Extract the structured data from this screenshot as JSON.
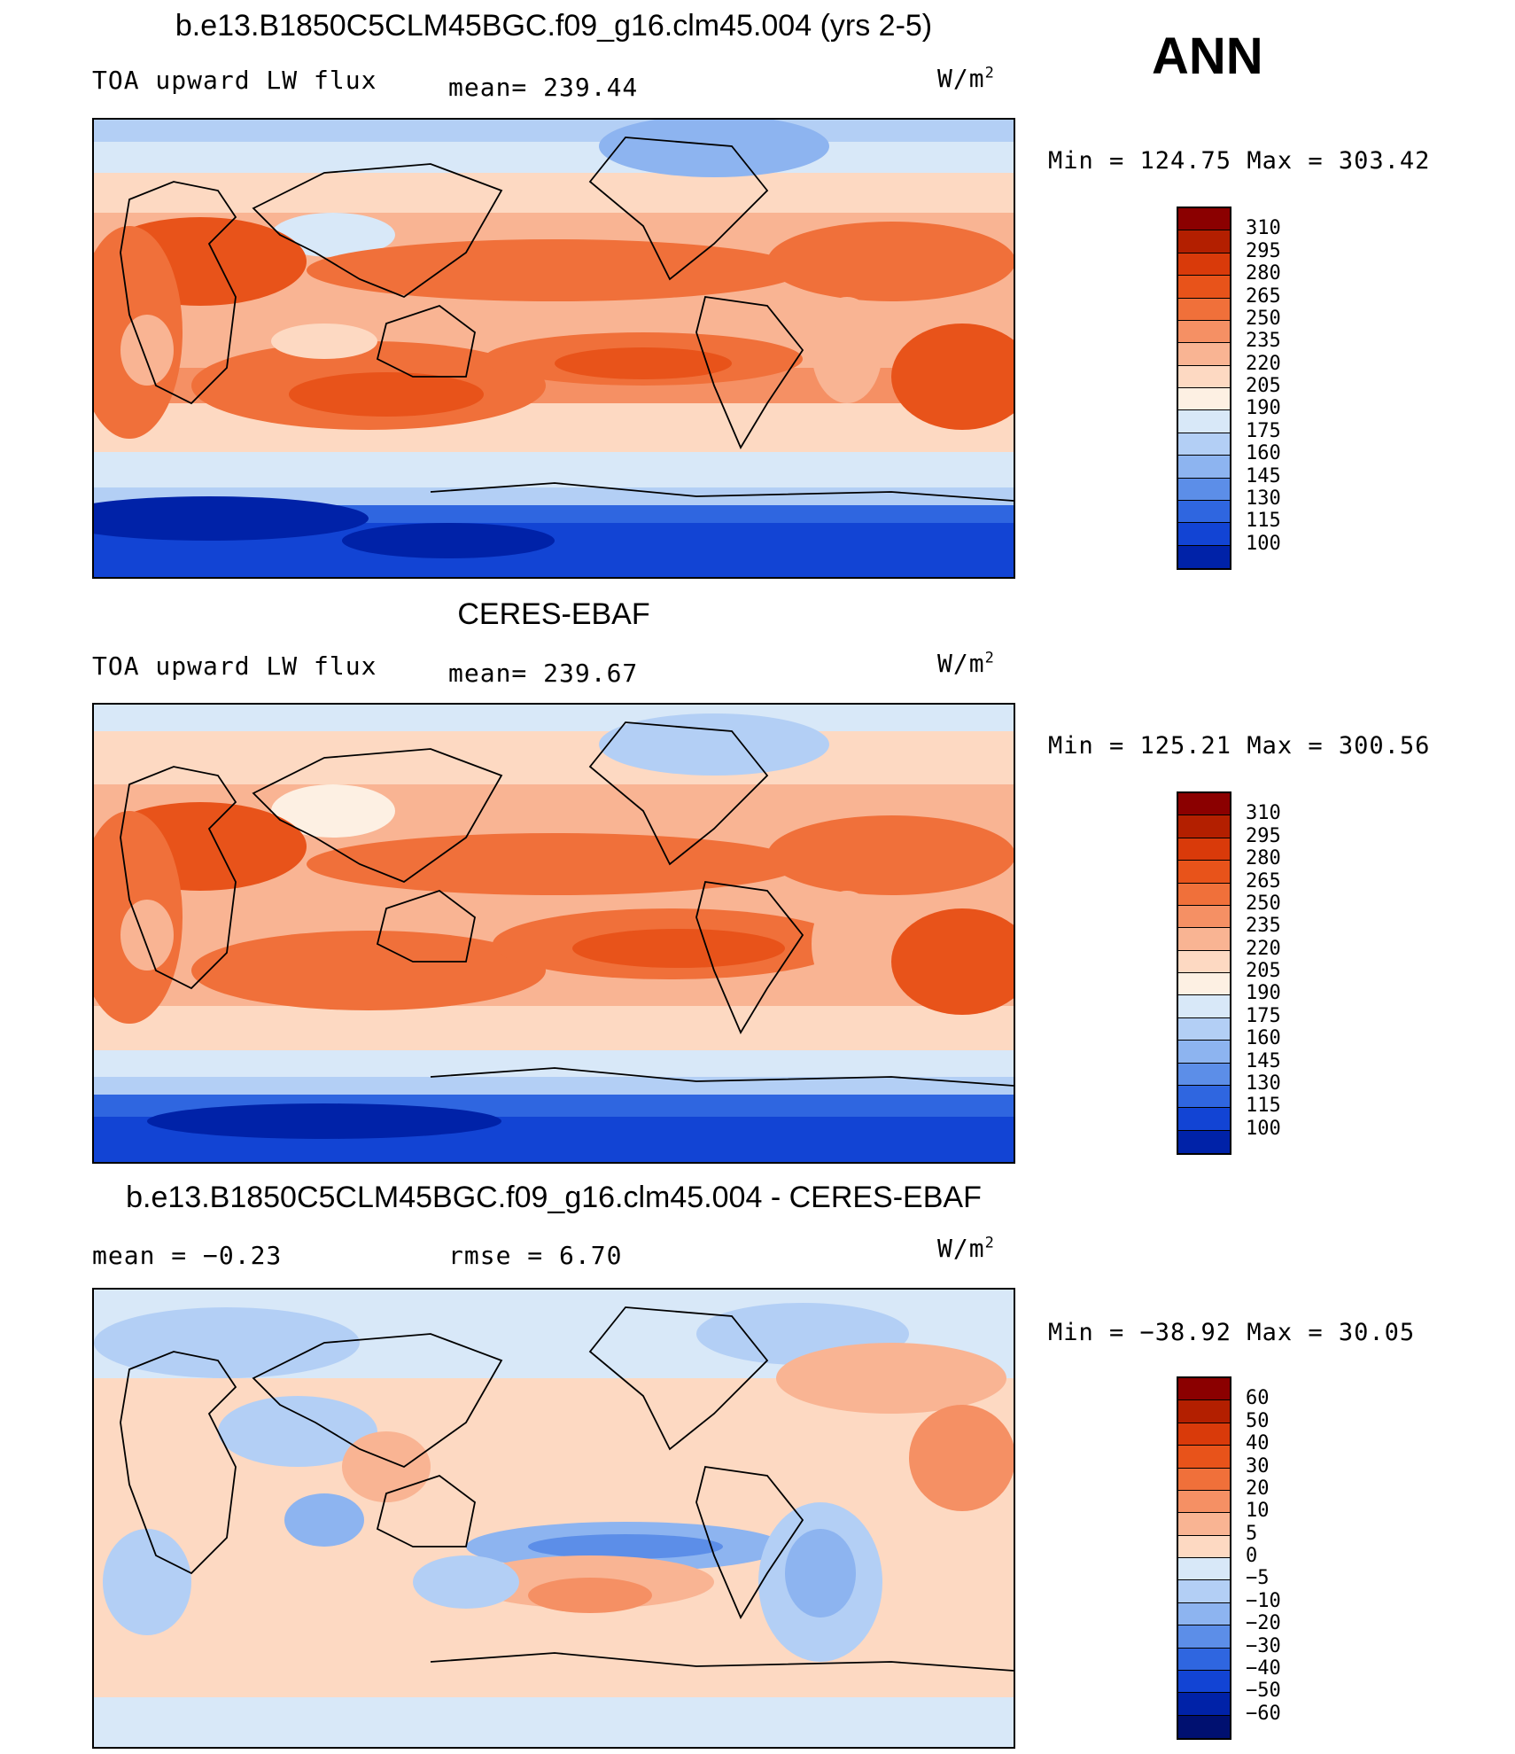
{
  "season": "ANN",
  "units_base": "W/m",
  "units_exp": "2",
  "panels": [
    {
      "title": "b.e13.B1850C5CLM45BGC.f09_g16.clm45.004 (yrs 2-5)",
      "variable": "TOA upward LW flux",
      "stat1": "mean= 239.44",
      "stat2": "",
      "minmax": "Min = 124.75 Max = 303.42"
    },
    {
      "title": "CERES-EBAF",
      "variable": "TOA upward LW flux",
      "stat1": "mean= 239.67",
      "stat2": "",
      "minmax": "Min = 125.21 Max = 300.56"
    },
    {
      "title": "b.e13.B1850C5CLM45BGC.f09_g16.clm45.004 - CERES-EBAF",
      "variable": "",
      "stat1": "mean =   −0.23",
      "stat2": "rmse =    6.70",
      "minmax": "Min = −38.92 Max =  30.05"
    }
  ],
  "colorbars": {
    "absolute": {
      "levels": [
        "310",
        "295",
        "280",
        "265",
        "250",
        "235",
        "220",
        "205",
        "190",
        "175",
        "160",
        "145",
        "130",
        "115",
        "100"
      ],
      "colors": [
        "#8b0000",
        "#b31f00",
        "#d93a0a",
        "#e8531a",
        "#f0703a",
        "#f59064",
        "#f9b493",
        "#fdd9c2",
        "#fdf0e3",
        "#d8e8f8",
        "#b3cff5",
        "#8db4f0",
        "#5c8ee8",
        "#2f66e0",
        "#1244d4",
        "#0022a8"
      ]
    },
    "difference": {
      "levels": [
        "60",
        "50",
        "40",
        "30",
        "20",
        "10",
        "5",
        "0",
        "−5",
        "−10",
        "−20",
        "−30",
        "−40",
        "−50",
        "−60"
      ],
      "colors": [
        "#8b0000",
        "#b31f00",
        "#d93a0a",
        "#e8531a",
        "#f0703a",
        "#f59064",
        "#f9b493",
        "#fdd9c2",
        "#d8e8f8",
        "#b3cff5",
        "#8db4f0",
        "#5c8ee8",
        "#2f66e0",
        "#1244d4",
        "#0022a8",
        "#001070"
      ]
    }
  }
}
